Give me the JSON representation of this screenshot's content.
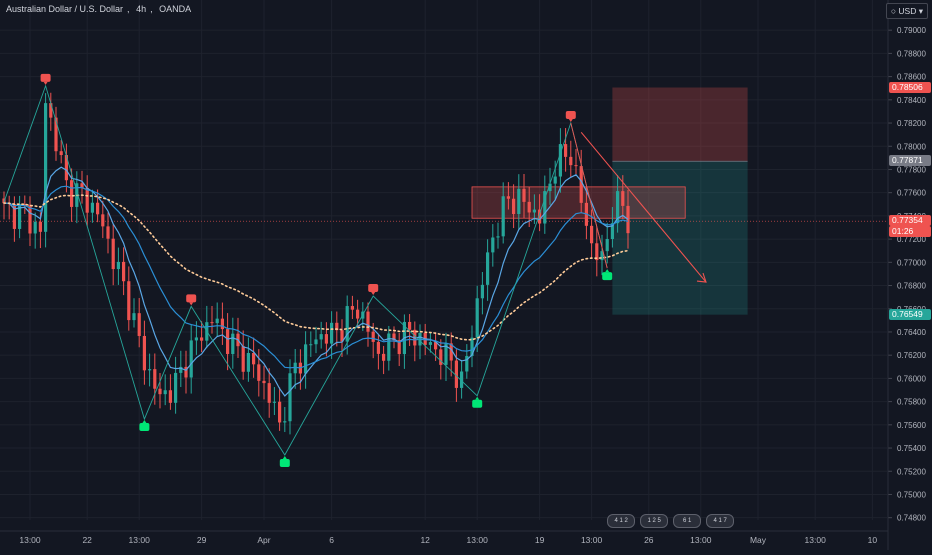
{
  "header": {
    "symbol": "Australian Dollar / U.S. Dollar",
    "interval": "4h",
    "exchange": "OANDA",
    "currency_button": "USD"
  },
  "colors": {
    "background": "#131722",
    "up": "#26a69a",
    "down": "#ef5350",
    "ema_fast": "#2b8fd6",
    "ema_slow": "#5aa7e6",
    "ma_dotted": "#ffcc99",
    "zigzag": "#26a69a",
    "stop_zone": "rgba(239,83,80,0.25)",
    "target_zone": "rgba(38,166,154,0.22)",
    "resistance_box": "rgba(239,83,80,0.25)"
  },
  "price_tags": [
    {
      "label": "0.78506",
      "price": 0.78506,
      "color": "#ef5350"
    },
    {
      "label": "0.77871",
      "price": 0.77871,
      "color": "#787b86"
    },
    {
      "label": "0.77354",
      "price": 0.77354,
      "color": "#ef5350",
      "sub": "01:26"
    },
    {
      "label": "0.76549",
      "price": 0.76549,
      "color": "#26a69a"
    }
  ],
  "events": [
    "4 1 2",
    "1 2 5",
    "6 1",
    "4 1 7"
  ],
  "chart_data": {
    "type": "line",
    "title": "",
    "xlabel": "",
    "ylabel": "",
    "ylim": [
      0.7478,
      0.7926
    ],
    "y_ticks": [
      0.79,
      0.788,
      0.786,
      0.784,
      0.782,
      0.78,
      0.778,
      0.776,
      0.774,
      0.772,
      0.77,
      0.768,
      0.766,
      0.764,
      0.762,
      0.76,
      0.758,
      0.756,
      0.754,
      0.752,
      0.75,
      0.748
    ],
    "y_tick_labels": [
      "0.79000",
      "0.78800",
      "0.78600",
      "0.78400",
      "0.78200",
      "0.78000",
      "0.77800",
      "0.77600",
      "0.77400",
      "0.77200",
      "0.77000",
      "0.76800",
      "0.76600",
      "0.76400",
      "0.76200",
      "0.76000",
      "0.75800",
      "0.75600",
      "0.75400",
      "0.75200",
      "0.75000",
      "0.74800"
    ],
    "x_range": [
      0,
      150
    ],
    "x_tick_labels": [
      {
        "i": 5,
        "label": "13:00"
      },
      {
        "i": 16,
        "label": "22"
      },
      {
        "i": 26,
        "label": "13:00"
      },
      {
        "i": 38,
        "label": "29"
      },
      {
        "i": 50,
        "label": "Apr"
      },
      {
        "i": 63,
        "label": "6"
      },
      {
        "i": 81,
        "label": "12"
      },
      {
        "i": 91,
        "label": "13:00"
      },
      {
        "i": 103,
        "label": "19"
      },
      {
        "i": 113,
        "label": "13:00"
      },
      {
        "i": 124,
        "label": "26"
      },
      {
        "i": 134,
        "label": "13:00"
      },
      {
        "i": 145,
        "label": "May"
      },
      {
        "i": 156,
        "label": "13:00"
      },
      {
        "i": 167,
        "label": "10"
      }
    ],
    "close_anchors": [
      [
        0,
        0.7745
      ],
      [
        4,
        0.7742
      ],
      [
        7,
        0.7725
      ],
      [
        8,
        0.7838
      ],
      [
        10,
        0.7805
      ],
      [
        12,
        0.7765
      ],
      [
        15,
        0.7758
      ],
      [
        18,
        0.7742
      ],
      [
        21,
        0.7705
      ],
      [
        24,
        0.7665
      ],
      [
        27,
        0.7615
      ],
      [
        30,
        0.7583
      ],
      [
        33,
        0.7595
      ],
      [
        36,
        0.7625
      ],
      [
        40,
        0.7652
      ],
      [
        44,
        0.7628
      ],
      [
        48,
        0.761
      ],
      [
        51,
        0.7585
      ],
      [
        53,
        0.756
      ],
      [
        56,
        0.761
      ],
      [
        60,
        0.7635
      ],
      [
        64,
        0.764
      ],
      [
        68,
        0.7662
      ],
      [
        72,
        0.762
      ],
      [
        75,
        0.7632
      ],
      [
        78,
        0.764
      ],
      [
        82,
        0.7628
      ],
      [
        86,
        0.7615
      ],
      [
        88,
        0.7595
      ],
      [
        91,
        0.7665
      ],
      [
        94,
        0.7722
      ],
      [
        97,
        0.7755
      ],
      [
        100,
        0.7752
      ],
      [
        103,
        0.7738
      ],
      [
        106,
        0.7785
      ],
      [
        109,
        0.7795
      ],
      [
        111,
        0.7752
      ],
      [
        113,
        0.7715
      ],
      [
        115,
        0.77
      ],
      [
        117,
        0.7745
      ],
      [
        119,
        0.775
      ],
      [
        120,
        0.7735
      ]
    ],
    "series": [
      {
        "name": "",
        "kind": "ema_fast"
      },
      {
        "name": "",
        "kind": "ema_slow"
      },
      {
        "name": "",
        "kind": "ma_dotted"
      }
    ],
    "zigzag_points": [
      [
        0,
        0.7752
      ],
      [
        8,
        0.7852
      ],
      [
        27,
        0.7565
      ],
      [
        36,
        0.7662
      ],
      [
        54,
        0.7534
      ],
      [
        71,
        0.7671
      ],
      [
        91,
        0.7585
      ],
      [
        109,
        0.782
      ],
      [
        116,
        0.7695
      ]
    ],
    "pivot_labels": [
      {
        "i": 8,
        "price": 0.7852,
        "kind": "high"
      },
      {
        "i": 27,
        "price": 0.7565,
        "kind": "low"
      },
      {
        "i": 36,
        "price": 0.7662,
        "kind": "high"
      },
      {
        "i": 54,
        "price": 0.7534,
        "kind": "low"
      },
      {
        "i": 71,
        "price": 0.7671,
        "kind": "high"
      },
      {
        "i": 91,
        "price": 0.7585,
        "kind": "low"
      },
      {
        "i": 109,
        "price": 0.782,
        "kind": "high"
      },
      {
        "i": 116,
        "price": 0.7695,
        "kind": "low"
      }
    ],
    "short_position": {
      "i_start": 117,
      "i_end": 143,
      "entry": 0.77871,
      "stop": 0.78506,
      "target": 0.76549
    },
    "resistance_zone": {
      "i_start": 90,
      "i_end": 131,
      "top": 0.7765,
      "bottom": 0.7738
    },
    "projection_arrow": {
      "from": [
        111,
        0.7812
      ],
      "to": [
        135,
        0.7683
      ]
    },
    "last_price_line": 0.77354
  }
}
